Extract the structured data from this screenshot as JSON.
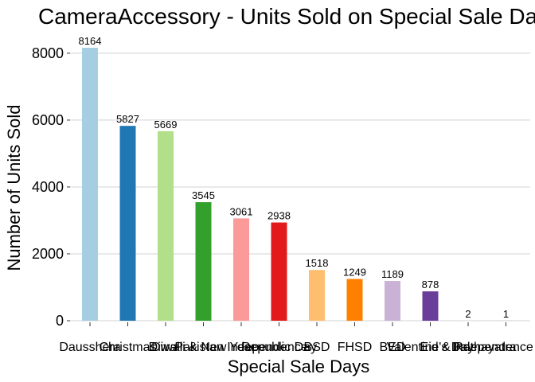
{
  "chart_data": {
    "type": "bar",
    "title": "CameraAccessory - Units Sold on Special Sale Days",
    "xlabel": "Special Sale Days",
    "ylabel": "Number of Units Sold",
    "categories": [
      "Dausshera",
      "Christmas",
      "Diwali",
      "Diwali & New Year",
      "Pakistan Independence",
      "Republic Day",
      "BSD",
      "FHSD",
      "BED",
      "Valentine's Day",
      "Eid & Rathayatra",
      "Independence Day"
    ],
    "values": [
      8164,
      5827,
      5669,
      3545,
      3061,
      2938,
      1518,
      1249,
      1189,
      878,
      2,
      1
    ],
    "colors": [
      "#a6cee3",
      "#1f78b4",
      "#b2df8a",
      "#33a02c",
      "#fb9a99",
      "#e31a1c",
      "#fdbf6f",
      "#ff7f00",
      "#cab2d6",
      "#6a3d9a",
      "#ffff99",
      "#b15928"
    ],
    "ylim": [
      0,
      8164
    ],
    "yticks": [
      0,
      2000,
      4000,
      6000,
      8000
    ],
    "grid": true,
    "legend": "none"
  }
}
